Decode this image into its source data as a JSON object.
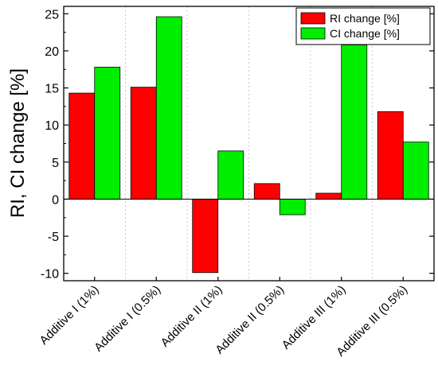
{
  "chart_data": {
    "type": "bar",
    "title": "",
    "xlabel": "",
    "ylabel": "RI, CI change [%]",
    "ylim": [
      -11,
      26
    ],
    "yticks": [
      -10,
      -5,
      0,
      5,
      10,
      15,
      20,
      25
    ],
    "grid": "vertical dotted",
    "legend_position": "top-right",
    "categories": [
      "Additive I (1%)",
      "Additive I (0.5%)",
      "Additive II (1%)",
      "Additive II (0.5%)",
      "Additive III (1%)",
      "Additive III (0.5%)"
    ],
    "series": [
      {
        "name": "RI change [%]",
        "color": "#ff0000",
        "values": [
          14.3,
          15.1,
          -9.9,
          2.1,
          0.8,
          11.8
        ]
      },
      {
        "name": "CI change [%]",
        "color": "#00ee00",
        "values": [
          17.8,
          24.6,
          6.5,
          -2.1,
          20.8,
          7.7
        ]
      }
    ]
  }
}
